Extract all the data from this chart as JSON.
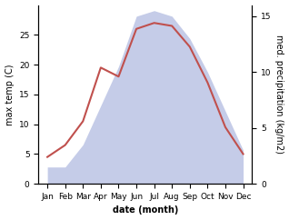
{
  "months": [
    "Jan",
    "Feb",
    "Mar",
    "Apr",
    "May",
    "Jun",
    "Jul",
    "Aug",
    "Sep",
    "Oct",
    "Nov",
    "Dec"
  ],
  "month_indices": [
    1,
    2,
    3,
    4,
    5,
    6,
    7,
    8,
    9,
    10,
    11,
    12
  ],
  "max_temp": [
    4.5,
    6.5,
    10.5,
    19.5,
    18.0,
    26.0,
    27.0,
    26.5,
    23.0,
    17.0,
    9.5,
    5.0
  ],
  "precipitation": [
    1.5,
    1.5,
    3.5,
    7.0,
    10.5,
    15.0,
    15.5,
    15.0,
    13.0,
    10.0,
    6.5,
    3.0
  ],
  "temp_color": "#c0504d",
  "precip_fill_color": "#c5cce8",
  "ylabel_left": "max temp (C)",
  "ylabel_right": "med. precipitation (kg/m2)",
  "xlabel": "date (month)",
  "ylim_left": [
    0,
    30
  ],
  "ylim_right": [
    0,
    16
  ],
  "yticks_left": [
    0,
    5,
    10,
    15,
    20,
    25
  ],
  "yticks_right": [
    0,
    5,
    10,
    15
  ],
  "background_color": "#ffffff",
  "label_fontsize": 7,
  "tick_fontsize": 6.5
}
